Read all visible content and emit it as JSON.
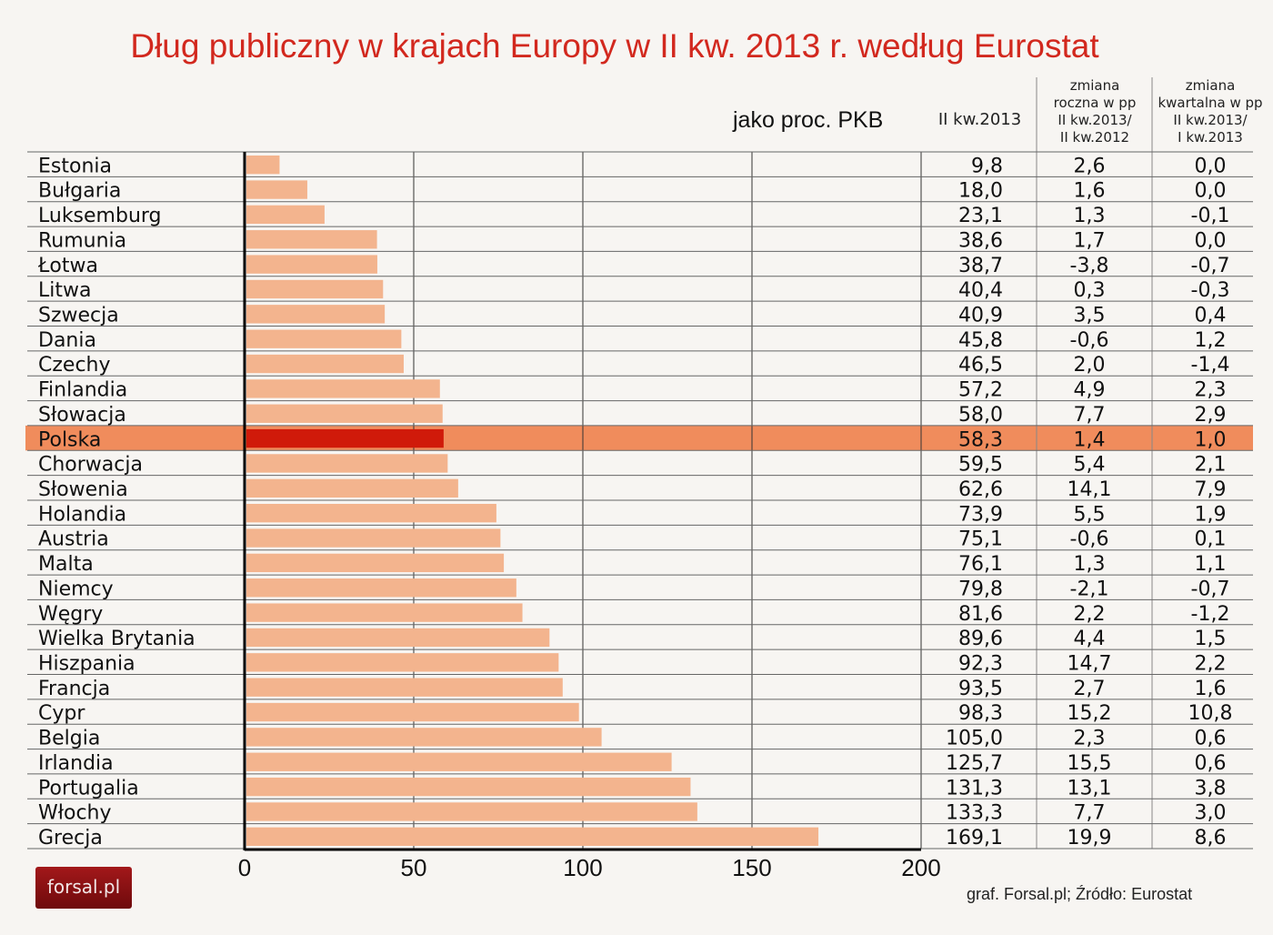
{
  "chart_data": {
    "type": "bar",
    "orientation": "horizontal",
    "title": "Dług publiczny w krajach Europy w II kw. 2013 r. według Eurostat",
    "unit_label": "jako proc. PKB",
    "xlim": [
      0,
      200
    ],
    "xticks": [
      0,
      50,
      100,
      150,
      200
    ],
    "grid": true,
    "highlight": "Polska",
    "colors": {
      "bar": "#f3b48e",
      "highlight_bar": "#d01a0a",
      "highlight_row": "#f08c5c",
      "title": "#d2281e"
    },
    "columns": [
      "II kw.2013",
      "zmiana roczna w pp II kw.2013/ II kw.2012",
      "zmiana kwartalna w pp II kw.2013/ I kw.2013"
    ],
    "categories": [
      "Estonia",
      "Bułgaria",
      "Luksemburg",
      "Rumunia",
      "Łotwa",
      "Litwa",
      "Szwecja",
      "Dania",
      "Czechy",
      "Finlandia",
      "Słowacja",
      "Polska",
      "Chorwacja",
      "Słowenia",
      "Holandia",
      "Austria",
      "Malta",
      "Niemcy",
      "Węgry",
      "Wielka Brytania",
      "Hiszpania",
      "Francja",
      "Cypr",
      "Belgia",
      "Irlandia",
      "Portugalia",
      "Włochy",
      "Grecja"
    ],
    "values": [
      9.8,
      18.0,
      23.1,
      38.6,
      38.7,
      40.4,
      40.9,
      45.8,
      46.5,
      57.2,
      58.0,
      58.3,
      59.5,
      62.6,
      73.9,
      75.1,
      76.1,
      79.8,
      81.6,
      89.6,
      92.3,
      93.5,
      98.3,
      105.0,
      125.7,
      131.3,
      133.3,
      169.1
    ],
    "values_text": [
      "9,8",
      "18,0",
      "23,1",
      "38,6",
      "38,7",
      "40,4",
      "40,9",
      "45,8",
      "46,5",
      "57,2",
      "58,0",
      "58,3",
      "59,5",
      "62,6",
      "73,9",
      "75,1",
      "76,1",
      "79,8",
      "81,6",
      "89,6",
      "92,3",
      "93,5",
      "98,3",
      "105,0",
      "125,7",
      "131,3",
      "133,3",
      "169,1"
    ],
    "annual_change": [
      "2,6",
      "1,6",
      "1,3",
      "1,7",
      "-3,8",
      "0,3",
      "3,5",
      "-0,6",
      "2,0",
      "4,9",
      "7,7",
      "1,4",
      "5,4",
      "14,1",
      "5,5",
      "-0,6",
      "1,3",
      "-2,1",
      "2,2",
      "4,4",
      "14,7",
      "2,7",
      "15,2",
      "2,3",
      "15,5",
      "13,1",
      "7,7",
      "19,9"
    ],
    "quarterly_change": [
      "0,0",
      "0,0",
      "-0,1",
      "0,0",
      "-0,7",
      "-0,3",
      "0,4",
      "1,2",
      "-1,4",
      "2,3",
      "2,9",
      "1,0",
      "2,1",
      "7,9",
      "1,9",
      "0,1",
      "1,1",
      "-0,7",
      "-1,2",
      "1,5",
      "2,2",
      "1,6",
      "10,8",
      "0,6",
      "0,6",
      "3,8",
      "3,0",
      "8,6"
    ]
  },
  "header": {
    "col1": "II kw.2013",
    "col2": [
      "zmiana",
      "roczna w pp",
      "II kw.2013/",
      "II kw.2012"
    ],
    "col3": [
      "zmiana",
      "kwartalna w pp",
      "II kw.2013/",
      "I kw.2013"
    ]
  },
  "source": "graf. Forsal.pl; Źródło: Eurostat",
  "logo": "forsal.pl"
}
